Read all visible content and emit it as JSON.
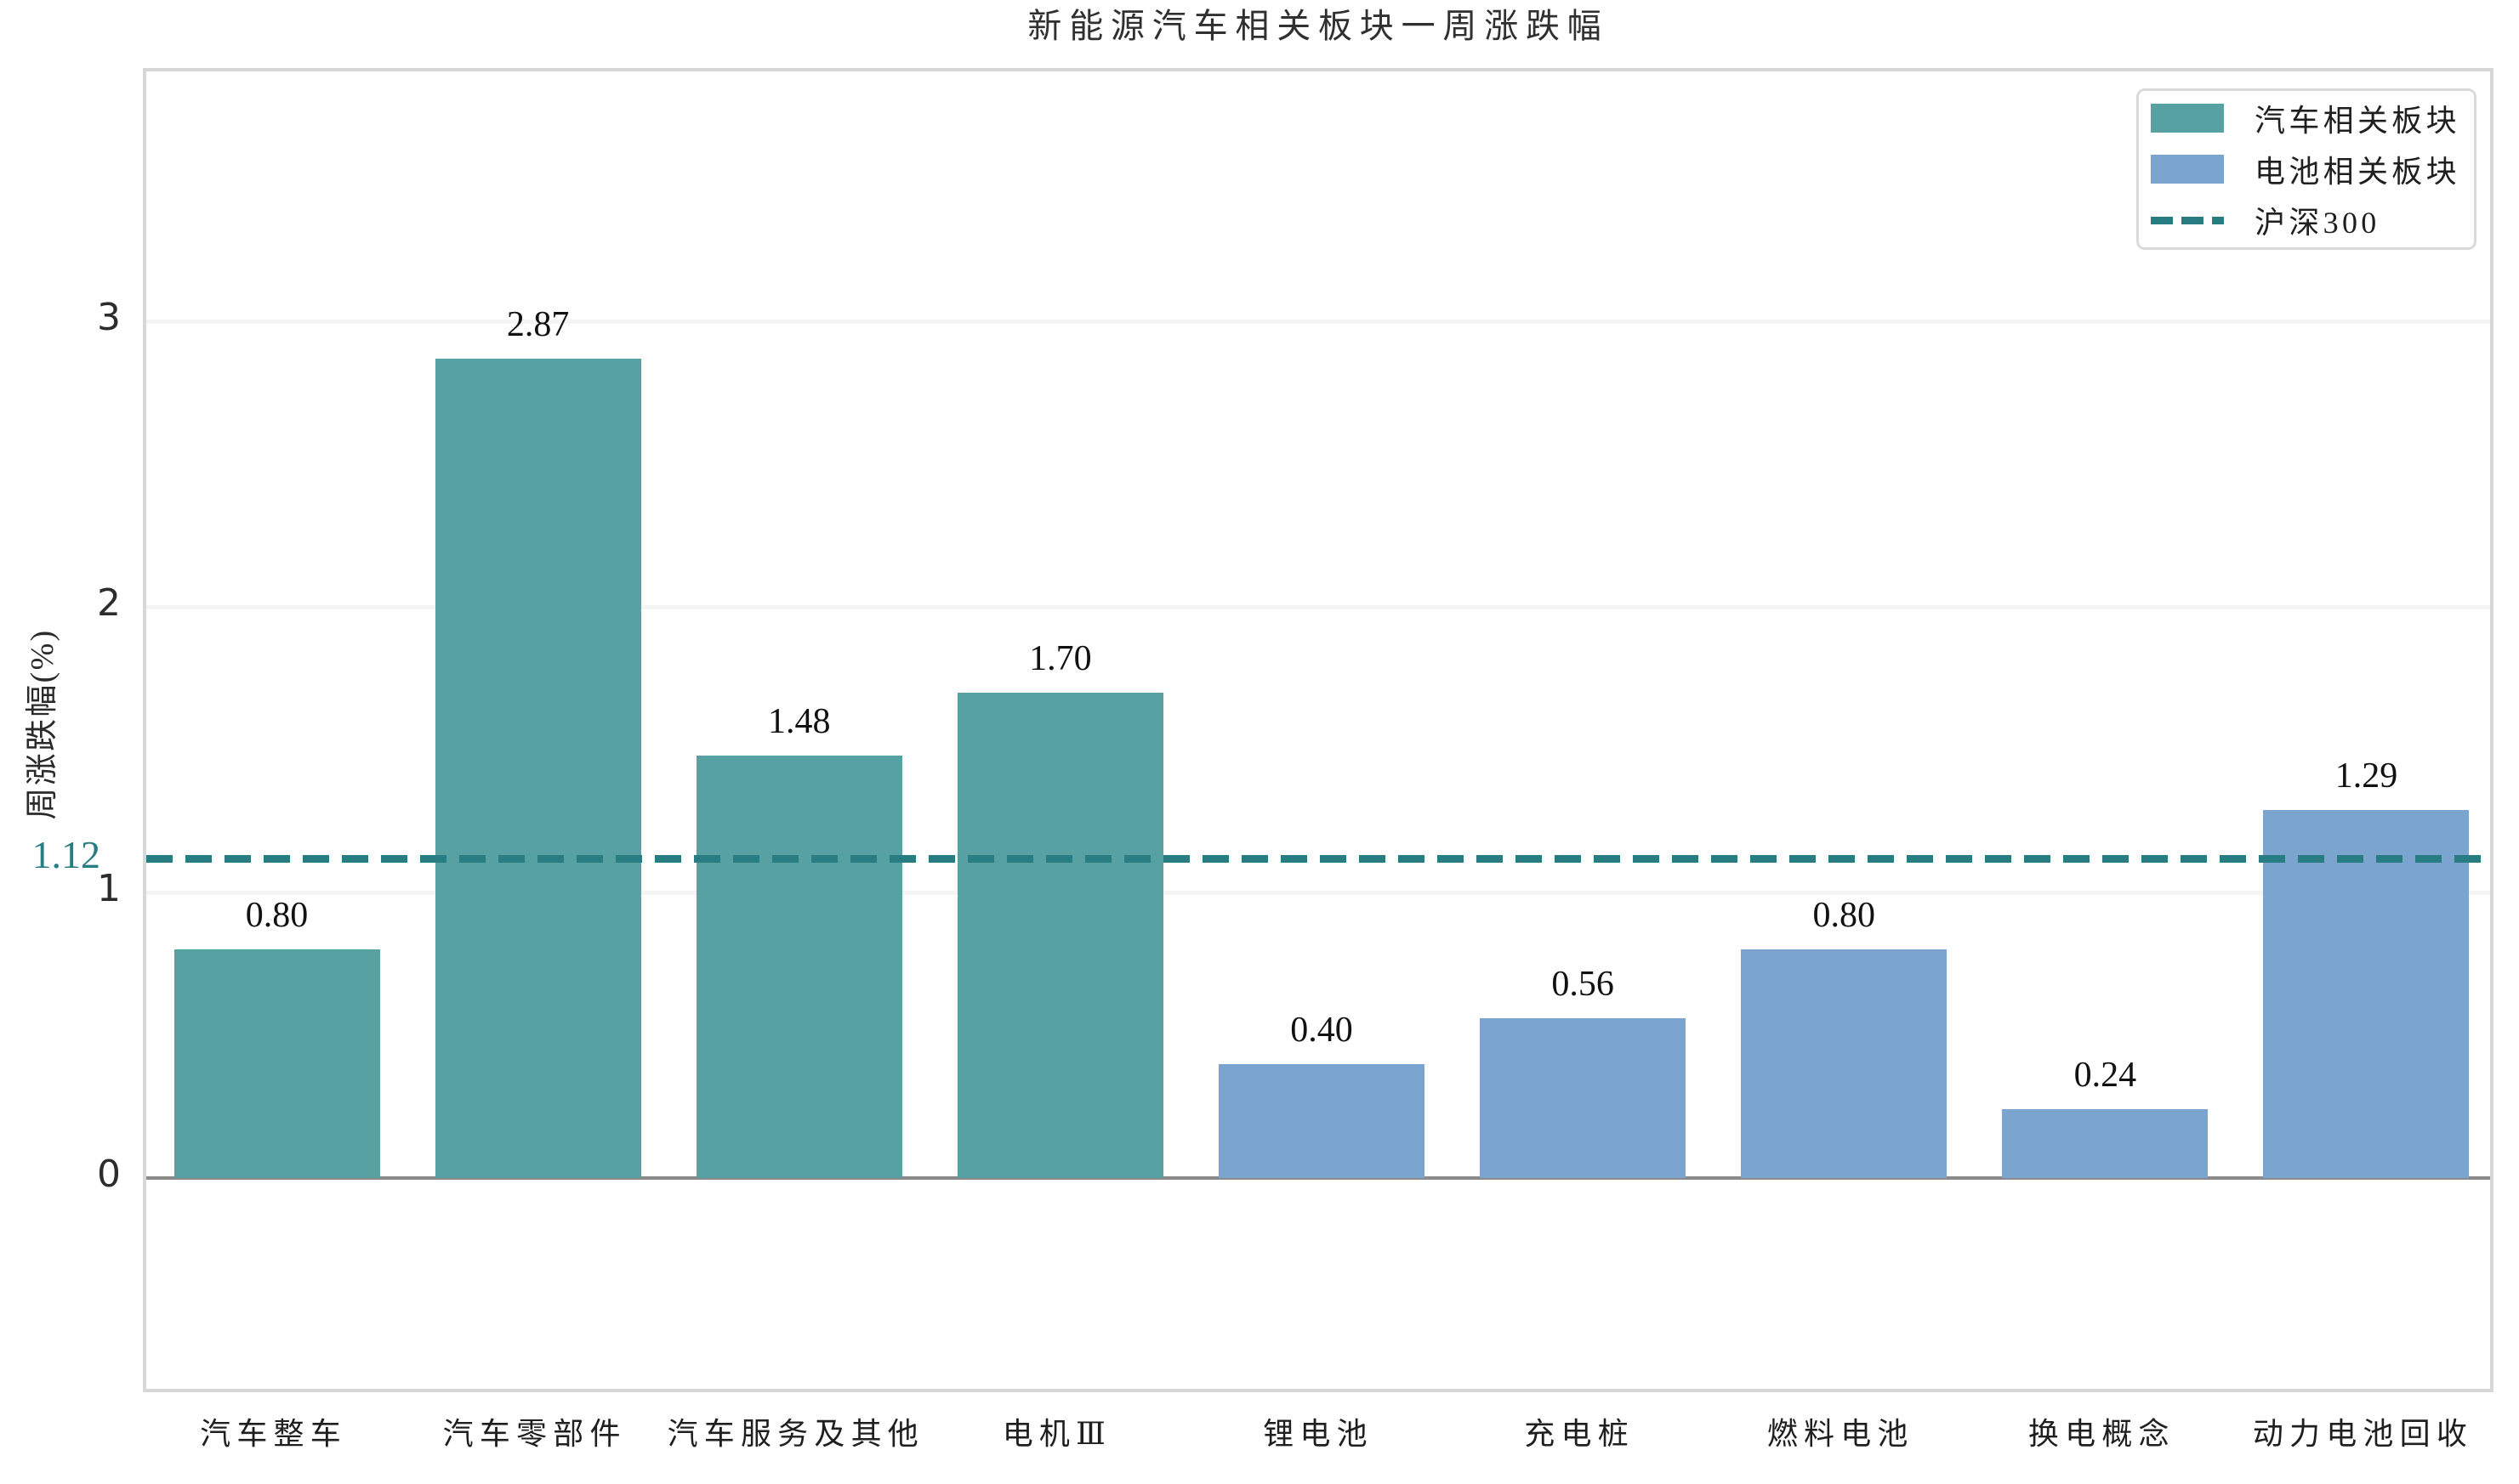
{
  "chart_data": {
    "type": "bar",
    "title": "新能源汽车相关板块一周涨跌幅",
    "ylabel": "周涨跌幅(%)",
    "categories": [
      "汽车整车",
      "汽车零部件",
      "汽车服务及其他",
      "电机Ⅲ",
      "锂电池",
      "充电桩",
      "燃料电池",
      "换电概念",
      "动力电池回收"
    ],
    "bars": [
      {
        "category": "汽车整车",
        "value": 0.8,
        "label": "0.80",
        "group": "汽车相关板块"
      },
      {
        "category": "汽车零部件",
        "value": 2.87,
        "label": "2.87",
        "group": "汽车相关板块"
      },
      {
        "category": "汽车服务及其他",
        "value": 1.48,
        "label": "1.48",
        "group": "汽车相关板块"
      },
      {
        "category": "电机Ⅲ",
        "value": 1.7,
        "label": "1.70",
        "group": "汽车相关板块"
      },
      {
        "category": "锂电池",
        "value": 0.4,
        "label": "0.40",
        "group": "电池相关板块"
      },
      {
        "category": "充电桩",
        "value": 0.56,
        "label": "0.56",
        "group": "电池相关板块"
      },
      {
        "category": "燃料电池",
        "value": 0.8,
        "label": "0.80",
        "group": "电池相关板块"
      },
      {
        "category": "换电概念",
        "value": 0.24,
        "label": "0.24",
        "group": "电池相关板块"
      },
      {
        "category": "动力电池回收",
        "value": 1.29,
        "label": "1.29",
        "group": "电池相关板块"
      }
    ],
    "series": [
      {
        "name": "汽车相关板块",
        "color": "#58a1a2",
        "values": [
          0.8,
          2.87,
          1.48,
          1.7
        ]
      },
      {
        "name": "电池相关板块",
        "color": "#7ba4ce",
        "values": [
          0.4,
          0.56,
          0.8,
          0.24,
          1.29
        ]
      }
    ],
    "benchmark": {
      "name": "沪深300",
      "value": 1.12,
      "label": "1.12",
      "color": "#277d82",
      "style": "dashed"
    },
    "yticks": [
      0,
      1,
      2,
      3
    ],
    "ylim": [
      -0.76,
      3.87
    ],
    "grid": true,
    "legend_position": "upper right",
    "zero_line_color": "#8a8a8a"
  }
}
